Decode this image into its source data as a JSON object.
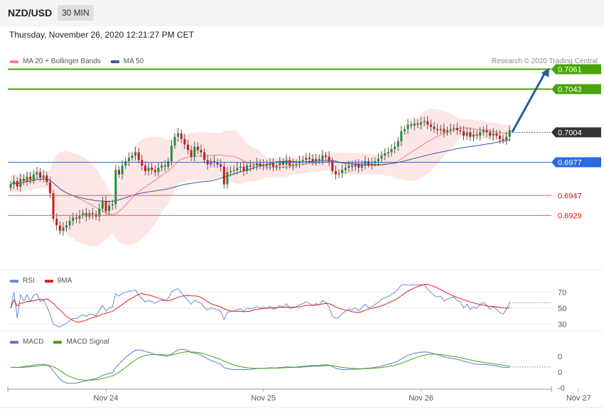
{
  "header": {
    "symbol": "NZD/USD",
    "timeframe": "30 MIN",
    "timestamp": "Thursday, November 26, 2020 12:21:27 PM CET",
    "copyright": "Research © 2020 Trading Central"
  },
  "colors": {
    "bull": "#1e8f3a",
    "bear": "#d01616",
    "ma20": "#f08080",
    "ma50": "#3a5a9a",
    "band": "#fde2e2",
    "resistance": "#4aa30a",
    "pivot": "#2a6ae0",
    "support": "#e06060",
    "current": "#333333",
    "rsi": "#6a8ad8",
    "rsi_ma": "#e02020",
    "macd": "#5a7ad8",
    "macd_signal": "#4aa30a",
    "arrow": "#2c5aa0"
  },
  "chart_data": [
    {
      "id": "price",
      "type": "candlestick",
      "legend": [
        {
          "name": "MA 20 + Bollinger Bands",
          "color": "#f08080"
        },
        {
          "name": "MA 50",
          "color": "#3a5a9a"
        }
      ],
      "x_labels": [
        "Nov 24",
        "Nov 25",
        "Nov 26",
        "Nov 27"
      ],
      "bars_per_day": 48,
      "first_day_bar_index": 29,
      "ylim": [
        0.6885,
        0.7085
      ],
      "levels": [
        {
          "value": 0.7061,
          "label": "0.7061",
          "kind": "resistance"
        },
        {
          "value": 0.7043,
          "label": "0.7043",
          "kind": "resistance"
        },
        {
          "value": 0.7004,
          "label": "0.7004",
          "kind": "current"
        },
        {
          "value": 0.6977,
          "label": "0.6977",
          "kind": "pivot"
        },
        {
          "value": 0.6947,
          "label": "0.6947",
          "kind": "support"
        },
        {
          "value": 0.6929,
          "label": "0.6929",
          "kind": "support"
        }
      ],
      "close": [
        0.6957,
        0.696,
        0.6955,
        0.6962,
        0.696,
        0.6964,
        0.6961,
        0.6966,
        0.6968,
        0.6963,
        0.6965,
        0.6959,
        0.6949,
        0.6926,
        0.692,
        0.6915,
        0.6918,
        0.692,
        0.6924,
        0.6927,
        0.6926,
        0.6929,
        0.6931,
        0.6928,
        0.6931,
        0.693,
        0.6928,
        0.6935,
        0.6942,
        0.6933,
        0.6938,
        0.6939,
        0.697,
        0.6966,
        0.6974,
        0.6978,
        0.6981,
        0.6983,
        0.6986,
        0.6979,
        0.6974,
        0.6969,
        0.6972,
        0.697,
        0.6968,
        0.6972,
        0.6974,
        0.6973,
        0.6978,
        0.6992,
        0.7,
        0.7003,
        0.6998,
        0.6993,
        0.6988,
        0.6982,
        0.6991,
        0.6988,
        0.6986,
        0.6979,
        0.6975,
        0.6978,
        0.6977,
        0.6975,
        0.6973,
        0.6957,
        0.6968,
        0.6969,
        0.697,
        0.6972,
        0.6973,
        0.6969,
        0.6974,
        0.6973,
        0.6974,
        0.6976,
        0.6974,
        0.6975,
        0.6974,
        0.6976,
        0.6973,
        0.6974,
        0.6977,
        0.6975,
        0.6979,
        0.6974,
        0.6975,
        0.6976,
        0.6978,
        0.6979,
        0.6981,
        0.698,
        0.6978,
        0.698,
        0.6979,
        0.6983,
        0.6982,
        0.6978,
        0.6969,
        0.6966,
        0.6967,
        0.697,
        0.6972,
        0.6974,
        0.6973,
        0.6975,
        0.6972,
        0.6975,
        0.6978,
        0.6975,
        0.6976,
        0.6978,
        0.698,
        0.6983,
        0.6985,
        0.6986,
        0.6989,
        0.6991,
        0.6996,
        0.7005,
        0.7007,
        0.7011,
        0.701,
        0.7012,
        0.7011,
        0.7013,
        0.7014,
        0.7011,
        0.7009,
        0.7007,
        0.7006,
        0.7007,
        0.7004,
        0.7006,
        0.7007,
        0.7008,
        0.7006,
        0.7005,
        0.7001,
        0.7004,
        0.7,
        0.7002,
        0.7001,
        0.7004,
        0.7006,
        0.7004,
        0.7001,
        0.7003,
        0.7001,
        0.6998,
        0.6997,
        0.7,
        0.7006
      ]
    },
    {
      "id": "rsi",
      "type": "line",
      "legend": [
        {
          "name": "RSI",
          "color": "#6a8ad8"
        },
        {
          "name": "9MA",
          "color": "#e02020"
        }
      ],
      "ticks": [
        "70",
        "50",
        "30"
      ],
      "ylim": [
        25,
        80
      ]
    },
    {
      "id": "macd",
      "type": "line",
      "legend": [
        {
          "name": "MACD",
          "color": "#5a7ad8"
        },
        {
          "name": "MACD Signal",
          "color": "#4aa30a"
        }
      ],
      "ticks": [
        "0",
        "0",
        "-0"
      ]
    }
  ]
}
